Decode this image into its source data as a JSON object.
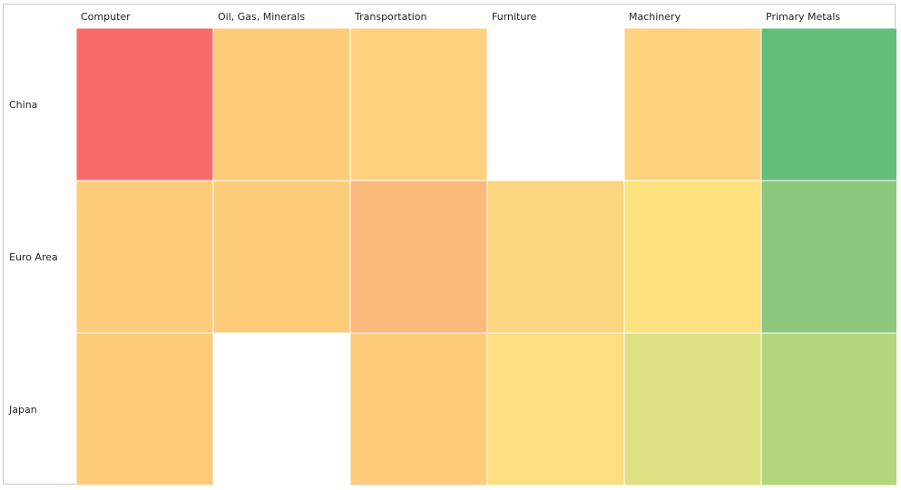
{
  "chart_data": {
    "type": "heatmap",
    "columns": [
      "Computer",
      "Oil, Gas, Minerals",
      "Transportation",
      "Furniture",
      "Machinery",
      "Primary Metals"
    ],
    "rows": [
      "China",
      "Euro Area",
      "Japan"
    ],
    "cell_colors": [
      [
        "#f96b6b",
        "#fdcc7a",
        "#fdd17d",
        null,
        "#fdd27e",
        "#63be7b"
      ],
      [
        "#fdcc7b",
        "#fdcc7b",
        "#fbb97b",
        "#fdd47f",
        "#fee17f",
        "#8bc77c"
      ],
      [
        "#fdca7a",
        null,
        "#fdcb7a",
        "#fdde80",
        "#dde182",
        "#b2d57e"
      ]
    ],
    "color_scale": {
      "low": "#f8696b",
      "mid": "#ffeb84",
      "high": "#63be7b"
    },
    "legend": "none",
    "grid": true
  }
}
